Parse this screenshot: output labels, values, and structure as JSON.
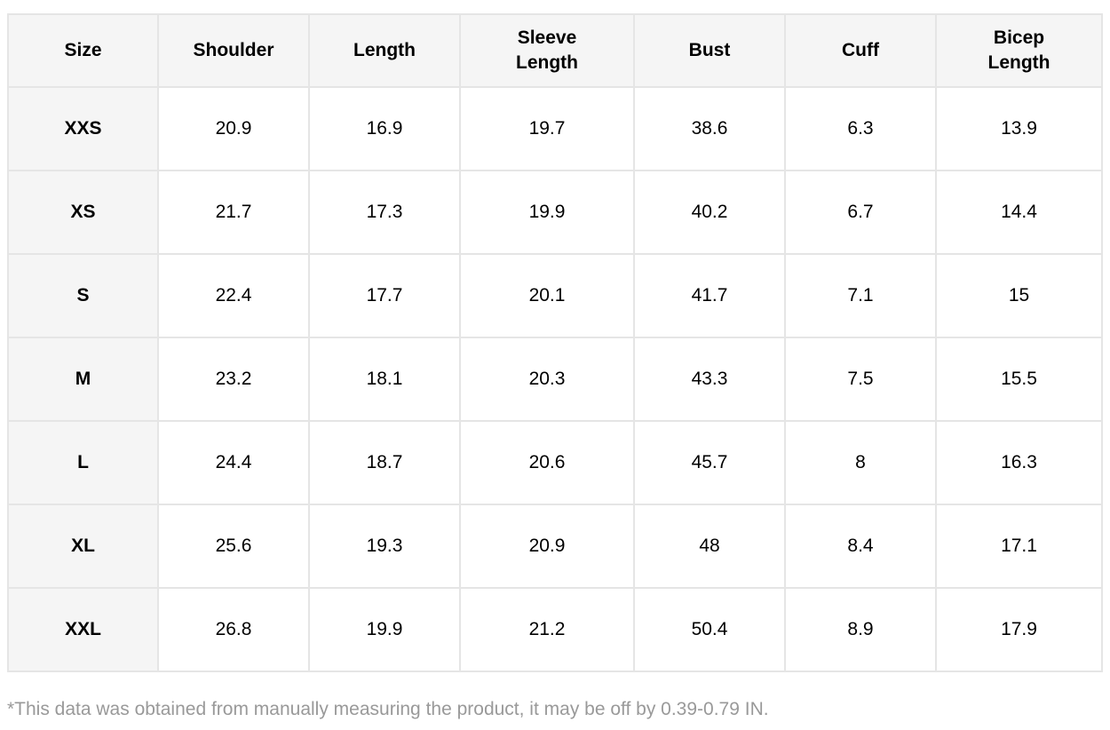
{
  "table": {
    "headers": [
      "Size",
      "Shoulder",
      "Length",
      "Sleeve\nLength",
      "Bust",
      "Cuff",
      "Bicep\nLength"
    ],
    "rows": [
      [
        "XXS",
        "20.9",
        "16.9",
        "19.7",
        "38.6",
        "6.3",
        "13.9"
      ],
      [
        "XS",
        "21.7",
        "17.3",
        "19.9",
        "40.2",
        "6.7",
        "14.4"
      ],
      [
        "S",
        "22.4",
        "17.7",
        "20.1",
        "41.7",
        "7.1",
        "15"
      ],
      [
        "M",
        "23.2",
        "18.1",
        "20.3",
        "43.3",
        "7.5",
        "15.5"
      ],
      [
        "L",
        "24.4",
        "18.7",
        "20.6",
        "45.7",
        "8",
        "16.3"
      ],
      [
        "XL",
        "25.6",
        "19.3",
        "20.9",
        "48",
        "8.4",
        "17.1"
      ],
      [
        "XXL",
        "26.8",
        "19.9",
        "21.2",
        "50.4",
        "8.9",
        "17.9"
      ]
    ]
  },
  "footnote": "*This data was obtained from manually measuring the product, it may be off by 0.39-0.79 IN.",
  "colors": {
    "header_bg": "#f5f5f5",
    "border": "#e5e5e5",
    "footnote": "#999999"
  }
}
